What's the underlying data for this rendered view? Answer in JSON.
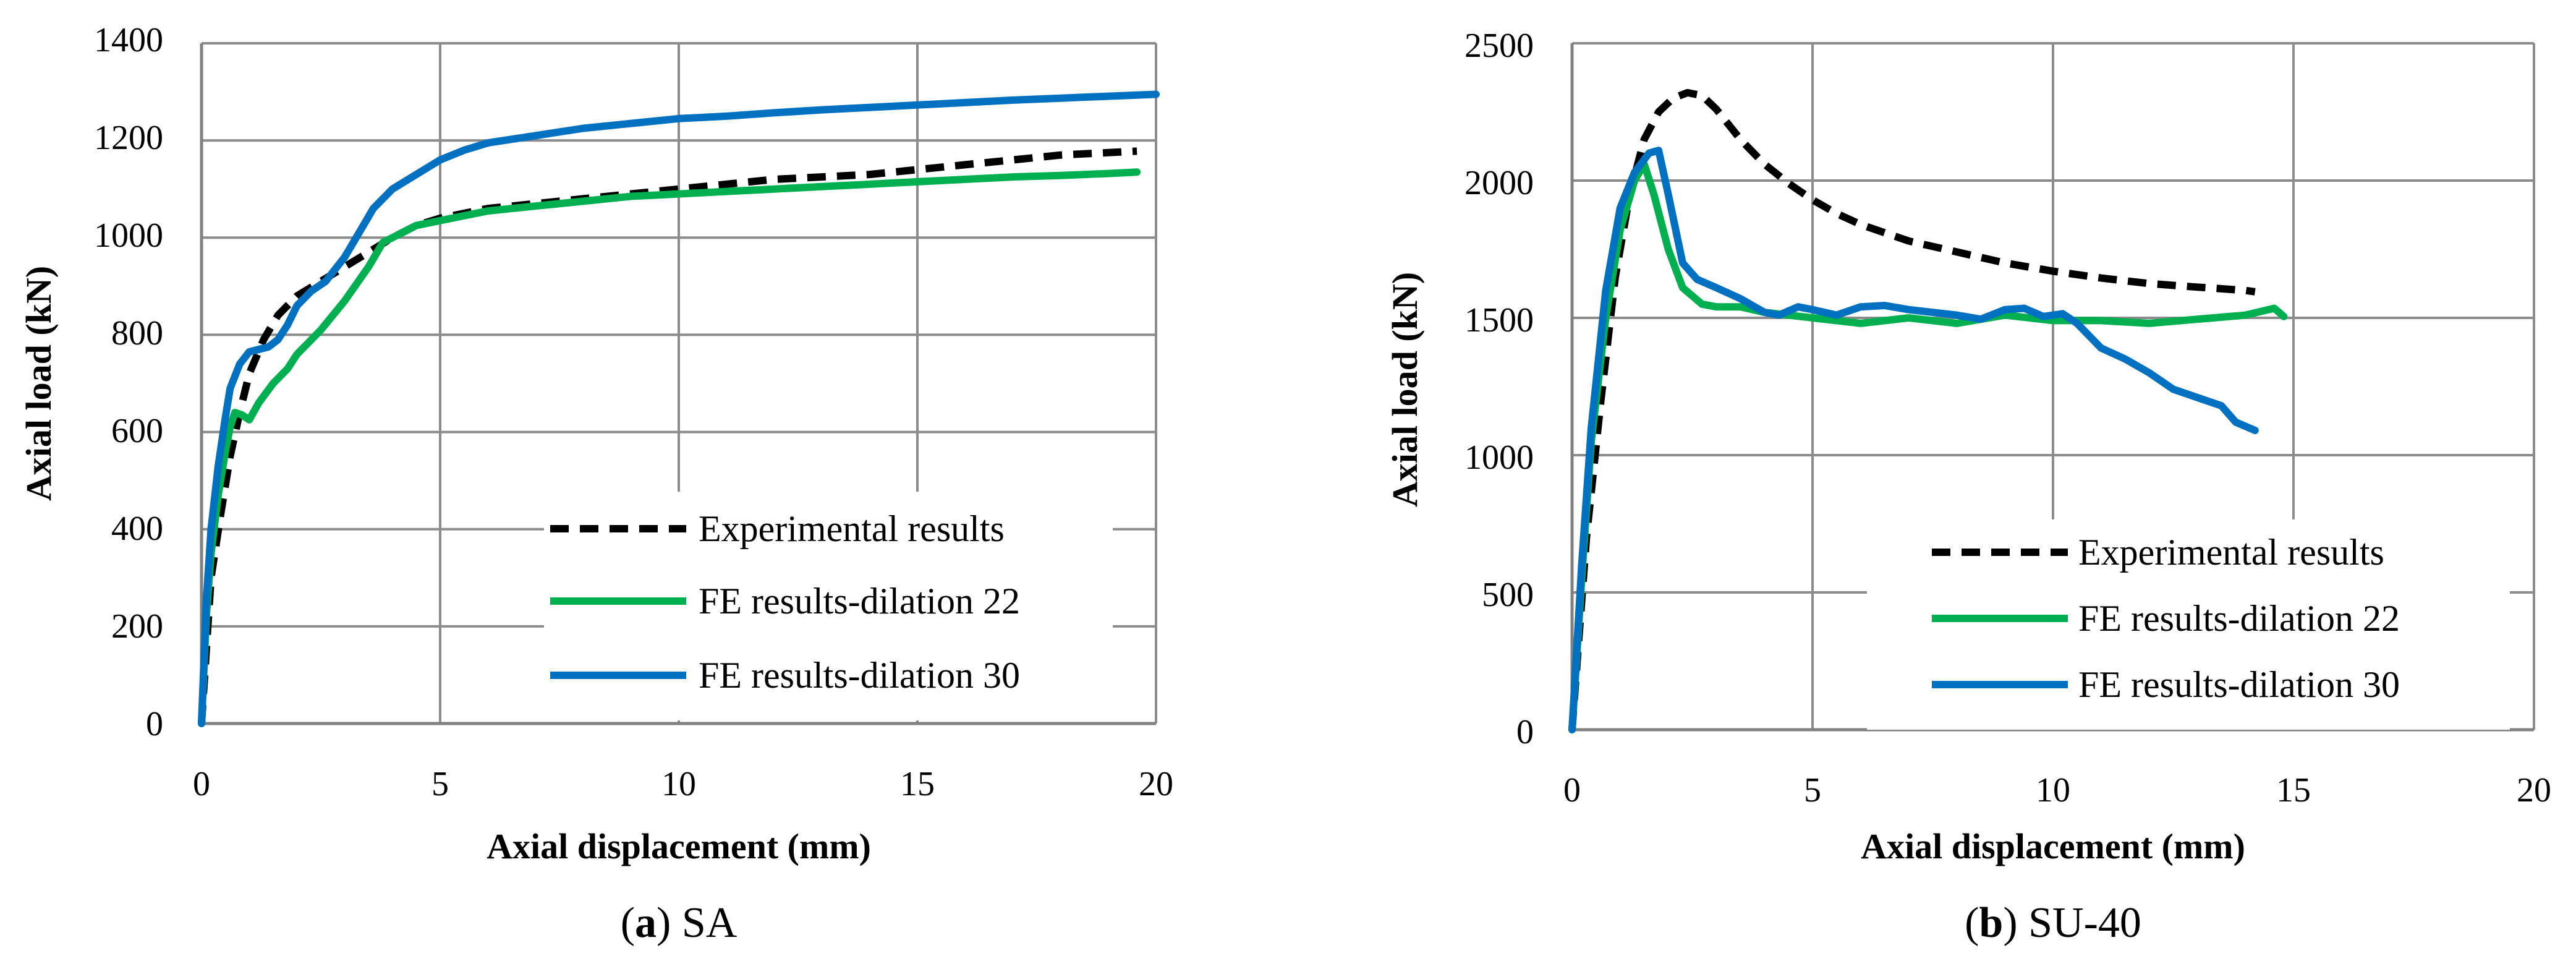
{
  "chart_data": [
    {
      "type": "line",
      "panel_label": "a",
      "caption_text": "SA",
      "xlabel": "Axial displacement (mm)",
      "ylabel": "Axial load (kN)",
      "xlim": [
        0,
        20
      ],
      "ylim": [
        0,
        1400
      ],
      "xticks": [
        0,
        5,
        10,
        15,
        20
      ],
      "yticks": [
        0,
        200,
        400,
        600,
        800,
        1000,
        1200,
        1400
      ],
      "xtick_labels": [
        "0",
        "5",
        "10",
        "15",
        "20"
      ],
      "ytick_labels": [
        "0",
        "200",
        "400",
        "600",
        "800",
        "1000",
        "1200",
        "1400"
      ],
      "grid": true,
      "legend_position": "bottom-right",
      "series": [
        {
          "name": "Experimental results",
          "color": "#000000",
          "dash": true,
          "points": [
            [
              0,
              0
            ],
            [
              0.2,
              300
            ],
            [
              0.4,
              430
            ],
            [
              0.6,
              550
            ],
            [
              0.8,
              640
            ],
            [
              1.0,
              720
            ],
            [
              1.3,
              790
            ],
            [
              1.6,
              840
            ],
            [
              2.0,
              880
            ],
            [
              2.5,
              910
            ],
            [
              3.0,
              940
            ],
            [
              3.5,
              970
            ],
            [
              4.0,
              1000
            ],
            [
              4.5,
              1025
            ],
            [
              5.0,
              1040
            ],
            [
              6.0,
              1060
            ],
            [
              7.0,
              1070
            ],
            [
              8.0,
              1080
            ],
            [
              9.0,
              1090
            ],
            [
              10.0,
              1100
            ],
            [
              11.0,
              1110
            ],
            [
              12.0,
              1120
            ],
            [
              13.0,
              1125
            ],
            [
              14.0,
              1130
            ],
            [
              15.0,
              1140
            ],
            [
              16.0,
              1150
            ],
            [
              17.0,
              1160
            ],
            [
              18.0,
              1170
            ],
            [
              19.0,
              1175
            ],
            [
              19.6,
              1178
            ]
          ]
        },
        {
          "name": "FE results-dilation 22",
          "color": "#00b050",
          "dash": false,
          "points": [
            [
              0,
              0
            ],
            [
              0.1,
              220
            ],
            [
              0.2,
              350
            ],
            [
              0.35,
              470
            ],
            [
              0.5,
              560
            ],
            [
              0.6,
              610
            ],
            [
              0.7,
              640
            ],
            [
              0.85,
              635
            ],
            [
              1.0,
              625
            ],
            [
              1.2,
              660
            ],
            [
              1.5,
              700
            ],
            [
              1.8,
              730
            ],
            [
              2.0,
              760
            ],
            [
              2.5,
              810
            ],
            [
              3.0,
              870
            ],
            [
              3.5,
              940
            ],
            [
              3.8,
              990
            ],
            [
              4.0,
              1000
            ],
            [
              4.2,
              1010
            ],
            [
              4.5,
              1025
            ],
            [
              5.0,
              1035
            ],
            [
              5.5,
              1045
            ],
            [
              6.0,
              1055
            ],
            [
              7.0,
              1065
            ],
            [
              8.0,
              1075
            ],
            [
              9.0,
              1085
            ],
            [
              10.0,
              1090
            ],
            [
              11.0,
              1095
            ],
            [
              12.0,
              1100
            ],
            [
              13.0,
              1105
            ],
            [
              14.0,
              1110
            ],
            [
              15.0,
              1115
            ],
            [
              16.0,
              1120
            ],
            [
              17.0,
              1125
            ],
            [
              18.0,
              1128
            ],
            [
              19.0,
              1132
            ],
            [
              19.6,
              1135
            ]
          ]
        },
        {
          "name": "FE results-dilation 30",
          "color": "#0070c0",
          "dash": false,
          "points": [
            [
              0,
              0
            ],
            [
              0.1,
              250
            ],
            [
              0.2,
              400
            ],
            [
              0.35,
              530
            ],
            [
              0.5,
              630
            ],
            [
              0.6,
              690
            ],
            [
              0.8,
              740
            ],
            [
              1.0,
              765
            ],
            [
              1.2,
              770
            ],
            [
              1.4,
              775
            ],
            [
              1.6,
              790
            ],
            [
              1.8,
              820
            ],
            [
              2.0,
              860
            ],
            [
              2.3,
              890
            ],
            [
              2.6,
              910
            ],
            [
              3.0,
              960
            ],
            [
              3.3,
              1010
            ],
            [
              3.6,
              1060
            ],
            [
              4.0,
              1100
            ],
            [
              4.5,
              1130
            ],
            [
              5.0,
              1160
            ],
            [
              5.5,
              1180
            ],
            [
              6.0,
              1195
            ],
            [
              7.0,
              1210
            ],
            [
              8.0,
              1225
            ],
            [
              9.0,
              1235
            ],
            [
              10.0,
              1245
            ],
            [
              11.0,
              1250
            ],
            [
              12.0,
              1257
            ],
            [
              13.0,
              1263
            ],
            [
              14.0,
              1268
            ],
            [
              15.0,
              1273
            ],
            [
              16.0,
              1278
            ],
            [
              17.0,
              1283
            ],
            [
              18.0,
              1287
            ],
            [
              19.0,
              1291
            ],
            [
              20.0,
              1295
            ]
          ]
        }
      ]
    },
    {
      "type": "line",
      "panel_label": "b",
      "caption_text": "SU-40",
      "xlabel": "Axial displacement (mm)",
      "ylabel": "Axial load (kN)",
      "xlim": [
        0,
        20
      ],
      "ylim": [
        0,
        2500
      ],
      "xticks": [
        0,
        5,
        10,
        15,
        20
      ],
      "yticks": [
        0,
        500,
        1000,
        1500,
        2000,
        2500
      ],
      "xtick_labels": [
        "0",
        "5",
        "10",
        "15",
        "20"
      ],
      "ytick_labels": [
        "0",
        "500",
        "1000",
        "1500",
        "2000",
        "2500"
      ],
      "grid": true,
      "legend_position": "bottom-right",
      "series": [
        {
          "name": "Experimental results",
          "color": "#000000",
          "dash": true,
          "points": [
            [
              0,
              0
            ],
            [
              0.3,
              700
            ],
            [
              0.6,
              1200
            ],
            [
              0.9,
              1650
            ],
            [
              1.2,
              1950
            ],
            [
              1.5,
              2150
            ],
            [
              1.8,
              2250
            ],
            [
              2.1,
              2300
            ],
            [
              2.4,
              2320
            ],
            [
              2.7,
              2310
            ],
            [
              3.0,
              2260
            ],
            [
              3.5,
              2150
            ],
            [
              4.0,
              2060
            ],
            [
              4.5,
              1990
            ],
            [
              5.0,
              1930
            ],
            [
              5.5,
              1880
            ],
            [
              6.0,
              1840
            ],
            [
              7.0,
              1780
            ],
            [
              8.0,
              1740
            ],
            [
              9.0,
              1700
            ],
            [
              10.0,
              1670
            ],
            [
              11.0,
              1645
            ],
            [
              12.0,
              1625
            ],
            [
              13.0,
              1612
            ],
            [
              14.0,
              1600
            ],
            [
              14.2,
              1595
            ]
          ]
        },
        {
          "name": "FE results-dilation 22",
          "color": "#00b050",
          "dash": false,
          "points": [
            [
              0,
              0
            ],
            [
              0.2,
              550
            ],
            [
              0.4,
              1050
            ],
            [
              0.7,
              1500
            ],
            [
              1.0,
              1820
            ],
            [
              1.3,
              2000
            ],
            [
              1.5,
              2060
            ],
            [
              1.7,
              1950
            ],
            [
              2.0,
              1750
            ],
            [
              2.3,
              1610
            ],
            [
              2.7,
              1550
            ],
            [
              3.0,
              1540
            ],
            [
              3.5,
              1540
            ],
            [
              4.0,
              1520
            ],
            [
              5.0,
              1500
            ],
            [
              6.0,
              1480
            ],
            [
              7.0,
              1500
            ],
            [
              8.0,
              1480
            ],
            [
              9.0,
              1510
            ],
            [
              10.0,
              1490
            ],
            [
              11.0,
              1490
            ],
            [
              12.0,
              1480
            ],
            [
              13.0,
              1495
            ],
            [
              14.0,
              1510
            ],
            [
              14.6,
              1535
            ],
            [
              14.8,
              1505
            ]
          ]
        },
        {
          "name": "FE results-dilation 30",
          "color": "#0070c0",
          "dash": false,
          "points": [
            [
              0,
              0
            ],
            [
              0.2,
              600
            ],
            [
              0.4,
              1100
            ],
            [
              0.7,
              1600
            ],
            [
              1.0,
              1900
            ],
            [
              1.3,
              2030
            ],
            [
              1.6,
              2100
            ],
            [
              1.8,
              2110
            ],
            [
              2.0,
              1950
            ],
            [
              2.3,
              1700
            ],
            [
              2.6,
              1640
            ],
            [
              3.0,
              1610
            ],
            [
              3.5,
              1570
            ],
            [
              4.0,
              1520
            ],
            [
              4.3,
              1510
            ],
            [
              4.7,
              1540
            ],
            [
              5.0,
              1530
            ],
            [
              5.5,
              1510
            ],
            [
              6.0,
              1540
            ],
            [
              6.5,
              1545
            ],
            [
              7.0,
              1530
            ],
            [
              8.0,
              1510
            ],
            [
              8.5,
              1495
            ],
            [
              9.0,
              1530
            ],
            [
              9.4,
              1535
            ],
            [
              9.8,
              1505
            ],
            [
              10.2,
              1515
            ],
            [
              10.5,
              1480
            ],
            [
              11.0,
              1390
            ],
            [
              11.5,
              1350
            ],
            [
              12.0,
              1300
            ],
            [
              12.5,
              1240
            ],
            [
              13.0,
              1210
            ],
            [
              13.5,
              1180
            ],
            [
              13.8,
              1120
            ],
            [
              14.2,
              1090
            ]
          ]
        }
      ]
    }
  ]
}
